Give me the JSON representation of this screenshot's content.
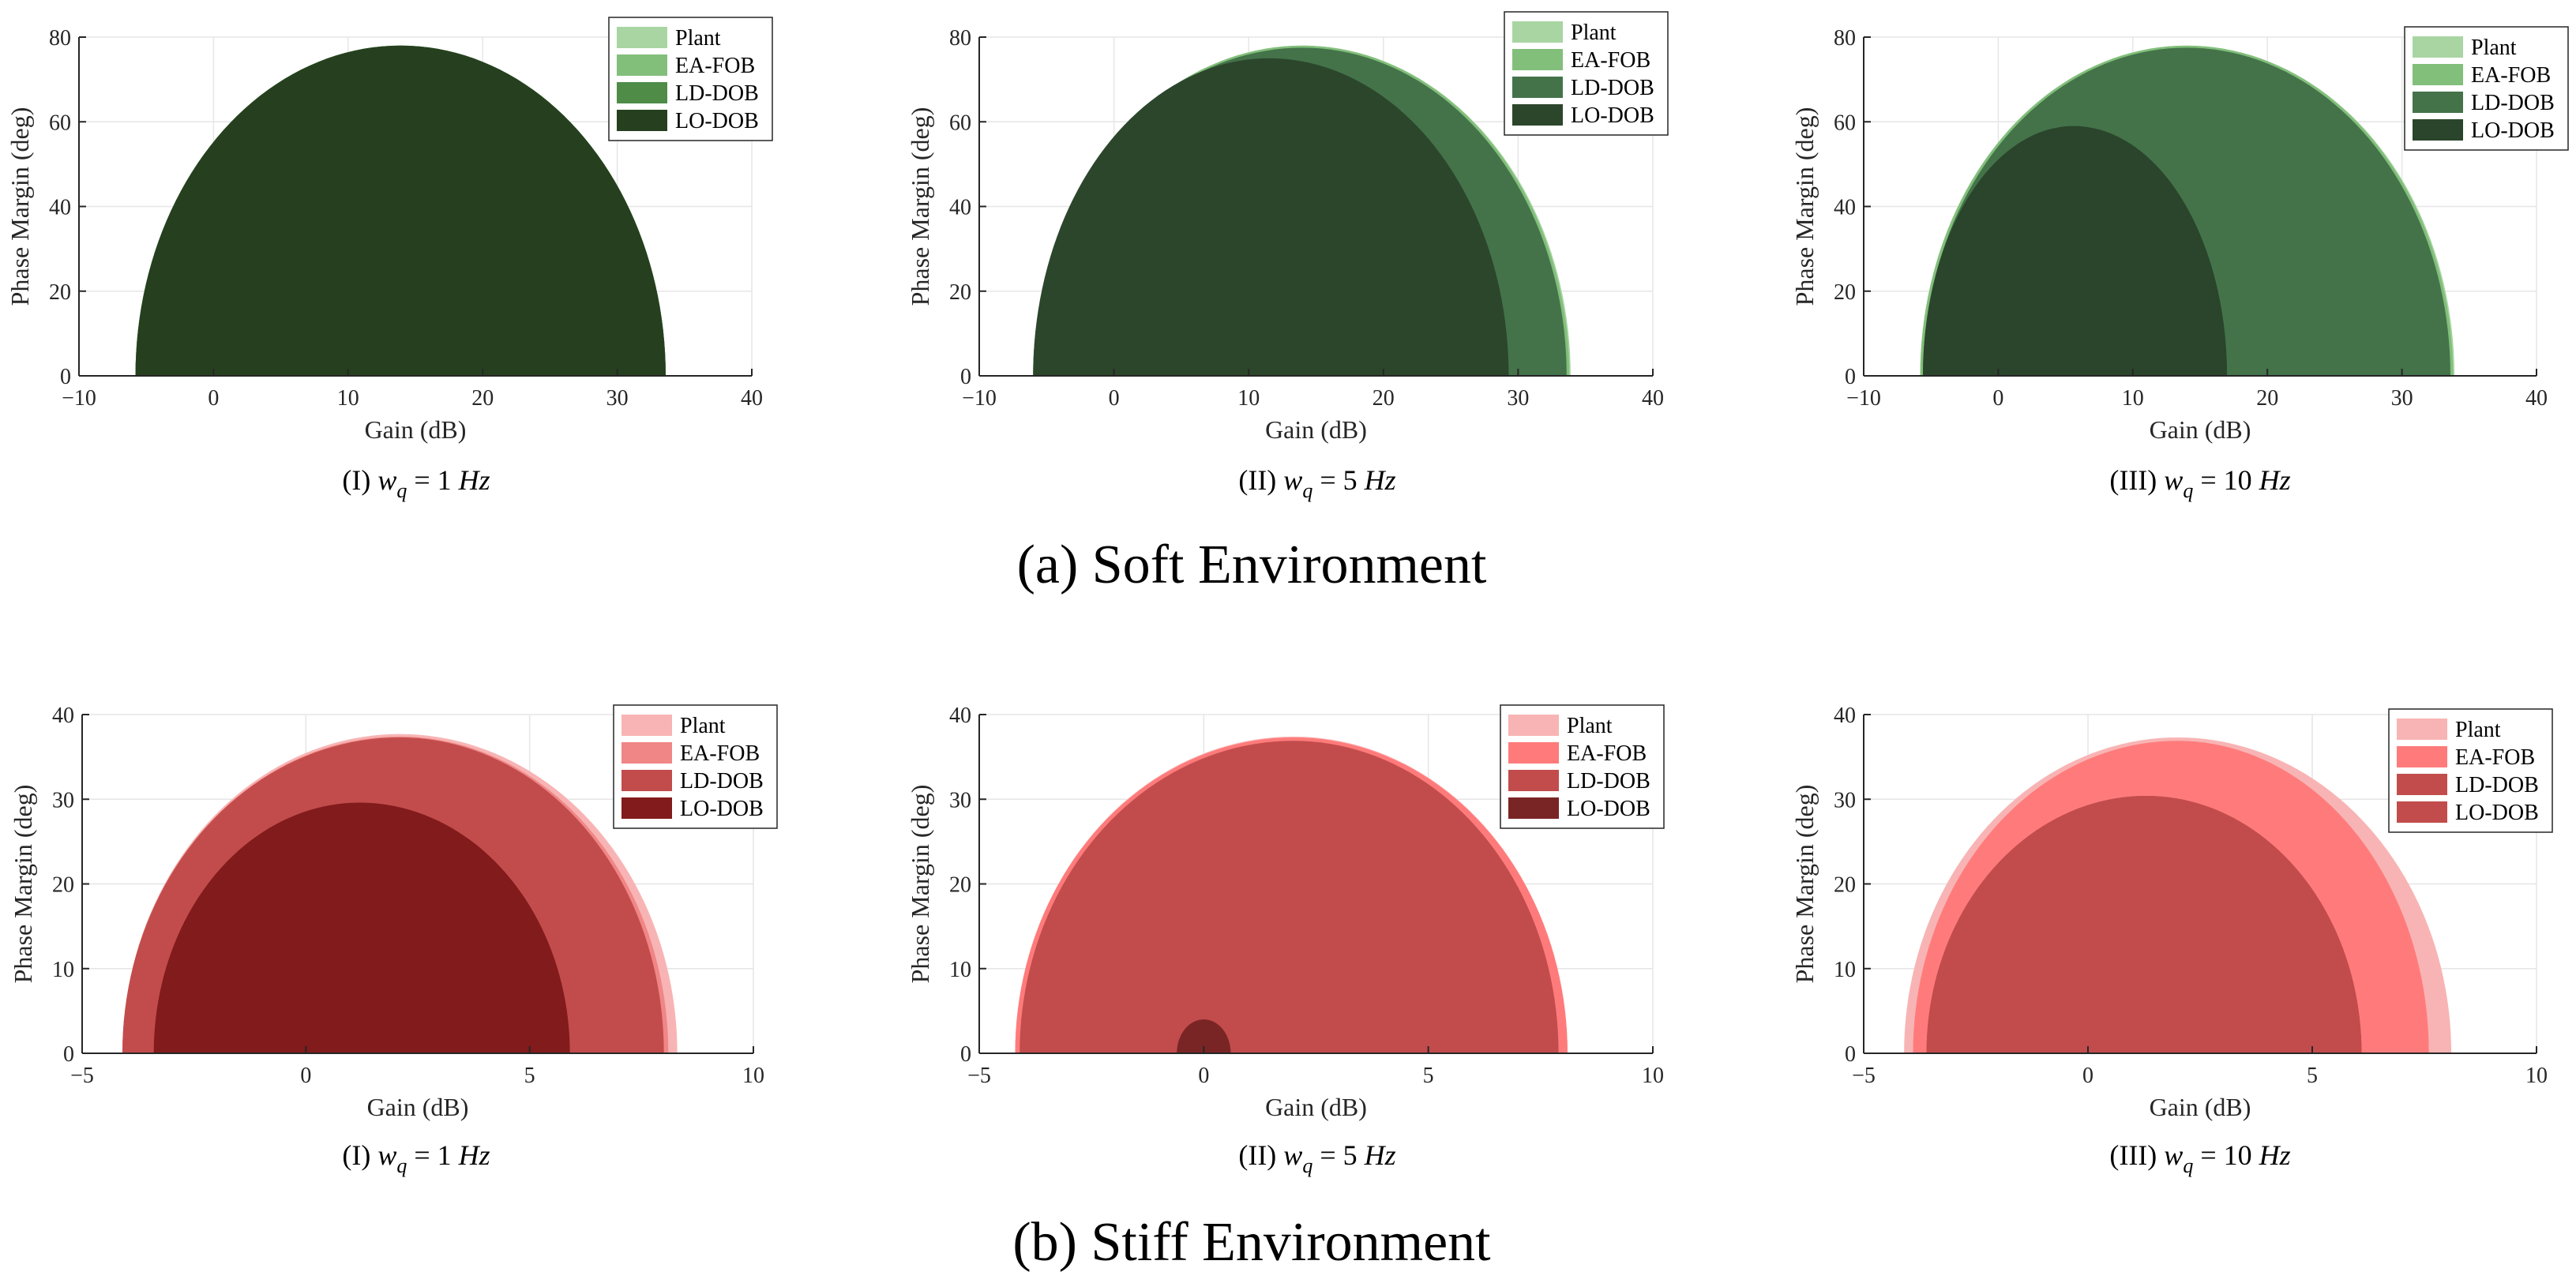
{
  "chart_data": [
    {
      "type": "area",
      "group": "a",
      "title": "(I) w_q = 1 Hz",
      "caption": {
        "prefix": "(I) ",
        "var": "w",
        "sub": "q",
        "rest": " = 1 ",
        "unit": "Hz"
      },
      "xlabel": "Gain (dB)",
      "ylabel": "Phase Margin (deg)",
      "xlim": [
        -10,
        40
      ],
      "ylim": [
        0,
        80
      ],
      "xticks": [
        -10,
        0,
        10,
        20,
        30,
        40
      ],
      "yticks": [
        0,
        20,
        40,
        60,
        80
      ],
      "grid": true,
      "legend_position": "top-right",
      "series": [
        {
          "name": "Plant",
          "color": "#a8d5a2",
          "gain_min": -5.8,
          "gain_max": 33.6,
          "gain_peak": 13.9,
          "phase_max": 78
        },
        {
          "name": "EA-FOB",
          "color": "#82bf7b",
          "gain_min": -5.8,
          "gain_max": 33.6,
          "gain_peak": 13.9,
          "phase_max": 78
        },
        {
          "name": "LD-DOB",
          "color": "#4e8c48",
          "gain_min": -5.8,
          "gain_max": 33.6,
          "gain_peak": 13.9,
          "phase_max": 78
        },
        {
          "name": "LO-DOB",
          "color": "#26401f",
          "gain_min": -5.8,
          "gain_max": 33.6,
          "gain_peak": 13.9,
          "phase_max": 78
        }
      ]
    },
    {
      "type": "area",
      "group": "a",
      "title": "(II) w_q = 5 Hz",
      "caption": {
        "prefix": "(II) ",
        "var": "w",
        "sub": "q",
        "rest": " = 5 ",
        "unit": "Hz"
      },
      "xlabel": "Gain (dB)",
      "ylabel": "Phase Margin (deg)",
      "xlim": [
        -10,
        40
      ],
      "ylim": [
        0,
        80
      ],
      "xticks": [
        -10,
        0,
        10,
        20,
        30,
        40
      ],
      "yticks": [
        0,
        20,
        40,
        60,
        80
      ],
      "grid": true,
      "legend_position": "top-right",
      "series": [
        {
          "name": "Plant",
          "color": "#a8d5a2",
          "gain_min": -6.0,
          "gain_max": 33.9,
          "gain_peak": 14.0,
          "phase_max": 78
        },
        {
          "name": "EA-FOB",
          "color": "#82bf7b",
          "gain_min": -6.0,
          "gain_max": 33.8,
          "gain_peak": 14.0,
          "phase_max": 78
        },
        {
          "name": "LD-DOB",
          "color": "#44734a",
          "gain_min": -6.0,
          "gain_max": 33.6,
          "gain_peak": 14.0,
          "phase_max": 77.5
        },
        {
          "name": "LO-DOB",
          "color": "#2c462c",
          "gain_min": -6.0,
          "gain_max": 29.3,
          "gain_peak": 11.5,
          "phase_max": 75
        }
      ]
    },
    {
      "type": "area",
      "group": "a",
      "title": "(III) w_q = 10 Hz",
      "caption": {
        "prefix": "(III) ",
        "var": "w",
        "sub": "q",
        "rest": " = 10 ",
        "unit": "Hz"
      },
      "xlabel": "Gain (dB)",
      "ylabel": "Phase Margin (deg)",
      "xlim": [
        -10,
        40
      ],
      "ylim": [
        0,
        80
      ],
      "xticks": [
        -10,
        0,
        10,
        20,
        30,
        40
      ],
      "yticks": [
        0,
        20,
        40,
        60,
        80
      ],
      "grid": true,
      "legend_position": "top-right",
      "series": [
        {
          "name": "Plant",
          "color": "#a8d5a2",
          "gain_min": -5.8,
          "gain_max": 33.9,
          "gain_peak": 14.0,
          "phase_max": 78
        },
        {
          "name": "EA-FOB",
          "color": "#82bf7b",
          "gain_min": -5.8,
          "gain_max": 33.8,
          "gain_peak": 14.0,
          "phase_max": 78
        },
        {
          "name": "LD-DOB",
          "color": "#44734a",
          "gain_min": -5.6,
          "gain_max": 33.6,
          "gain_peak": 14.0,
          "phase_max": 77.5
        },
        {
          "name": "LO-DOB",
          "color": "#2a452b",
          "gain_min": -5.6,
          "gain_max": 17.0,
          "gain_peak": 5.6,
          "phase_max": 59
        }
      ]
    },
    {
      "type": "area",
      "group": "b",
      "title": "(I) w_q = 1 Hz",
      "caption": {
        "prefix": "(I) ",
        "var": "w",
        "sub": "q",
        "rest": " = 1 ",
        "unit": "Hz"
      },
      "xlabel": "Gain (dB)",
      "ylabel": "Phase Margin (deg)",
      "xlim": [
        -5,
        10
      ],
      "ylim": [
        0,
        40
      ],
      "xticks": [
        -5,
        0,
        5,
        10
      ],
      "yticks": [
        0,
        10,
        20,
        30,
        40
      ],
      "grid": true,
      "legend_position": "top-right",
      "series": [
        {
          "name": "Plant",
          "color": "#f8b4b4",
          "gain_min": -4.1,
          "gain_max": 8.3,
          "gain_peak": 2.1,
          "phase_max": 37.7
        },
        {
          "name": "EA-FOB",
          "color": "#f08686",
          "gain_min": -4.1,
          "gain_max": 8.1,
          "gain_peak": 2.1,
          "phase_max": 37.4
        },
        {
          "name": "LD-DOB",
          "color": "#c24c4c",
          "gain_min": -4.1,
          "gain_max": 8.0,
          "gain_peak": 2.1,
          "phase_max": 37.3
        },
        {
          "name": "LO-DOB",
          "color": "#821b1b",
          "gain_min": -3.4,
          "gain_max": 5.9,
          "gain_peak": 1.2,
          "phase_max": 29.6
        }
      ]
    },
    {
      "type": "area",
      "group": "b",
      "title": "(II) w_q = 5 Hz",
      "caption": {
        "prefix": "(II) ",
        "var": "w",
        "sub": "q",
        "rest": " = 5 ",
        "unit": "Hz"
      },
      "xlabel": "Gain (dB)",
      "ylabel": "Phase Margin (deg)",
      "xlim": [
        -5,
        10
      ],
      "ylim": [
        0,
        40
      ],
      "xticks": [
        -5,
        0,
        5,
        10
      ],
      "yticks": [
        0,
        10,
        20,
        30,
        40
      ],
      "grid": true,
      "legend_position": "top-right",
      "series": [
        {
          "name": "Plant",
          "color": "#f8b4b4",
          "gain_min": -4.2,
          "gain_max": 8.1,
          "gain_peak": 2.0,
          "phase_max": 37.4
        },
        {
          "name": "EA-FOB",
          "color": "#ff7b7b",
          "gain_min": -4.2,
          "gain_max": 8.1,
          "gain_peak": 2.0,
          "phase_max": 37.3
        },
        {
          "name": "LD-DOB",
          "color": "#c24c4c",
          "gain_min": -4.1,
          "gain_max": 7.9,
          "gain_peak": 2.0,
          "phase_max": 36.9
        },
        {
          "name": "LO-DOB",
          "color": "#7a2525",
          "gain_min": -0.6,
          "gain_max": 0.6,
          "gain_peak": 0.0,
          "phase_max": 4.0
        }
      ]
    },
    {
      "type": "area",
      "group": "b",
      "title": "(III) w_q = 10 Hz",
      "caption": {
        "prefix": "(III) ",
        "var": "w",
        "sub": "q",
        "rest": " = 10 ",
        "unit": "Hz"
      },
      "xlabel": "Gain (dB)",
      "ylabel": "Phase Margin (deg)",
      "xlim": [
        -5,
        10
      ],
      "ylim": [
        0,
        40
      ],
      "xticks": [
        -5,
        0,
        5,
        10
      ],
      "yticks": [
        0,
        10,
        20,
        30,
        40
      ],
      "grid": true,
      "legend_position": "top-right",
      "series": [
        {
          "name": "Plant",
          "color": "#f8b4b4",
          "gain_min": -4.1,
          "gain_max": 8.1,
          "gain_peak": 2.0,
          "phase_max": 37.3
        },
        {
          "name": "EA-FOB",
          "color": "#ff7b7b",
          "gain_min": -3.9,
          "gain_max": 7.6,
          "gain_peak": 2.0,
          "phase_max": 36.9
        },
        {
          "name": "LD-DOB",
          "color": "#c24c4c",
          "gain_min": -3.6,
          "gain_max": 6.1,
          "gain_peak": 1.3,
          "phase_max": 30.4
        },
        {
          "name": "LO-DOB",
          "color": "#c24c4c",
          "gain_min": -3.6,
          "gain_max": 6.1,
          "gain_peak": 1.3,
          "phase_max": 30.4
        }
      ]
    }
  ],
  "group_captions": {
    "a": "(a) Soft Environment",
    "b": "(b) Stiff Environment"
  }
}
